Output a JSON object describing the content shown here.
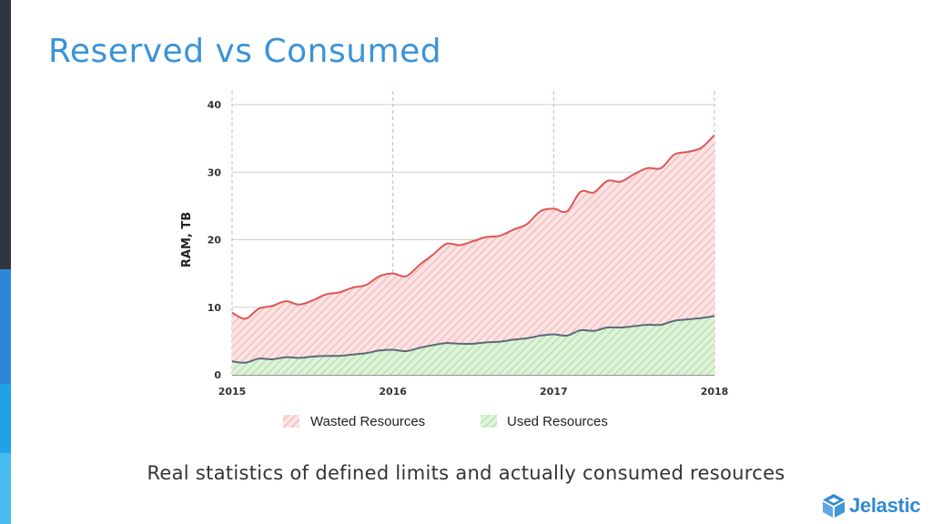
{
  "slide": {
    "title": "Reserved vs Consumed",
    "caption": "Real statistics of defined limits and actually consumed resources",
    "logo_text": "Jelastic",
    "title_color": "#3a93d8",
    "logo_color": "#2f8ad6"
  },
  "side_bar_colors": [
    "#2d3641",
    "#2e87d6",
    "#1fa2e8",
    "#48bbf0"
  ],
  "legend": {
    "wasted_label": "Wasted Resources",
    "used_label": "Used Resources"
  },
  "chart_data": {
    "type": "area",
    "ylabel": "RAM, TB",
    "xlabel": "",
    "xlim": [
      2015,
      2018
    ],
    "ylim": [
      0,
      40
    ],
    "yticks": [
      0,
      10,
      20,
      30,
      40
    ],
    "xticks": [
      2015,
      2016,
      2017,
      2018
    ],
    "grid": true,
    "legend_position": "bottom",
    "x": [
      2015.0,
      2015.083,
      2015.167,
      2015.25,
      2015.333,
      2015.417,
      2015.5,
      2015.583,
      2015.667,
      2015.75,
      2015.833,
      2015.917,
      2016.0,
      2016.083,
      2016.167,
      2016.25,
      2016.333,
      2016.417,
      2016.5,
      2016.583,
      2016.667,
      2016.75,
      2016.833,
      2016.917,
      2017.0,
      2017.083,
      2017.167,
      2017.25,
      2017.333,
      2017.417,
      2017.5,
      2017.583,
      2017.667,
      2017.75,
      2017.833,
      2017.917,
      2018.0
    ],
    "series": [
      {
        "name": "Wasted Resources",
        "role": "reserved",
        "line_color": "#e05555",
        "fill_color": "#f7c8c8",
        "values": [
          9.2,
          8.3,
          9.8,
          10.2,
          10.9,
          10.4,
          11.0,
          11.9,
          12.2,
          12.9,
          13.3,
          14.6,
          15.0,
          14.6,
          16.3,
          17.8,
          19.4,
          19.2,
          19.8,
          20.4,
          20.6,
          21.5,
          22.3,
          24.2,
          24.6,
          24.2,
          27.1,
          27.0,
          28.7,
          28.6,
          29.7,
          30.6,
          30.6,
          32.6,
          33.0,
          33.6,
          35.5
        ]
      },
      {
        "name": "Used Resources",
        "role": "consumed",
        "line_color": "#5a6b7a",
        "fill_color": "#c3e7bb",
        "values": [
          2.0,
          1.8,
          2.4,
          2.3,
          2.6,
          2.5,
          2.7,
          2.8,
          2.8,
          3.0,
          3.2,
          3.6,
          3.7,
          3.5,
          4.0,
          4.4,
          4.7,
          4.6,
          4.6,
          4.8,
          4.9,
          5.2,
          5.4,
          5.8,
          6.0,
          5.8,
          6.6,
          6.5,
          7.0,
          7.0,
          7.2,
          7.4,
          7.4,
          8.0,
          8.2,
          8.4,
          8.7
        ]
      }
    ]
  }
}
